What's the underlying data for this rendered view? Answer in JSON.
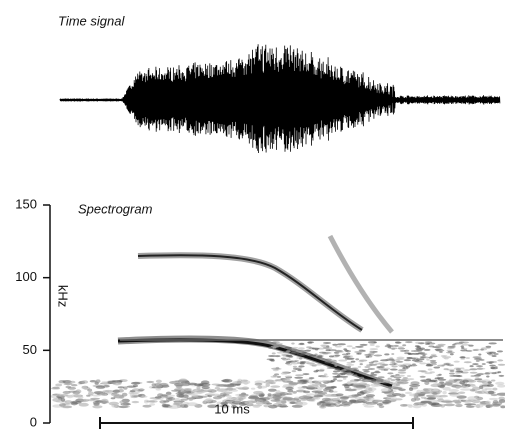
{
  "chart_data": {
    "type": "spectrogram",
    "title": "Time signal",
    "subtitle": "Spectrogram",
    "y_label": "kHz",
    "scale_bar_label": "10 ms",
    "ylim": [
      0,
      150
    ],
    "yticks": [
      0,
      50,
      100,
      150
    ]
  }
}
